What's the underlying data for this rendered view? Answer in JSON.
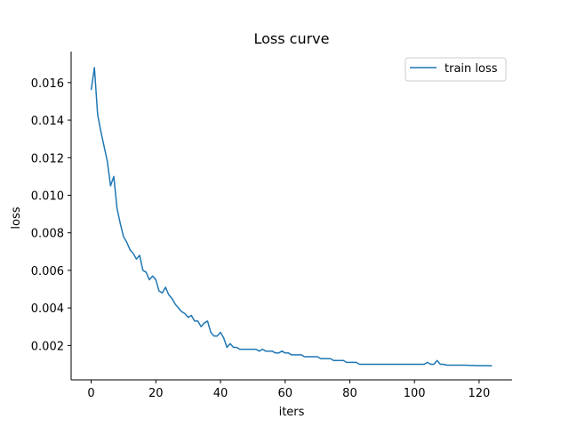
{
  "chart_data": {
    "type": "line",
    "title": "Loss curve",
    "xlabel": "iters",
    "ylabel": "loss",
    "xlim": [
      -6.2,
      130.2
    ],
    "ylim": [
      0.00017,
      0.01765
    ],
    "xticks": [
      0,
      20,
      40,
      60,
      80,
      100,
      120
    ],
    "yticks": [
      0.002,
      0.004,
      0.006,
      0.008,
      0.01,
      0.012,
      0.014,
      0.016
    ],
    "xtick_labels": [
      "0",
      "20",
      "40",
      "60",
      "80",
      "100",
      "120"
    ],
    "ytick_labels": [
      "0.002",
      "0.004",
      "0.006",
      "0.008",
      "0.010",
      "0.012",
      "0.014",
      "0.016"
    ],
    "grid": false,
    "legend": {
      "position": "top-right",
      "entries": [
        "train loss"
      ]
    },
    "series": [
      {
        "name": "train loss",
        "color": "#1f77b4",
        "x": [
          0,
          1,
          2,
          3,
          4,
          5,
          6,
          7,
          8,
          9,
          10,
          11,
          12,
          13,
          14,
          15,
          16,
          17,
          18,
          19,
          20,
          21,
          22,
          23,
          24,
          25,
          26,
          27,
          28,
          29,
          30,
          31,
          32,
          33,
          34,
          35,
          36,
          37,
          38,
          39,
          40,
          41,
          42,
          43,
          44,
          45,
          46,
          47,
          48,
          49,
          50,
          51,
          52,
          53,
          54,
          55,
          56,
          57,
          58,
          59,
          60,
          61,
          62,
          63,
          64,
          65,
          66,
          67,
          68,
          69,
          70,
          71,
          72,
          73,
          74,
          75,
          76,
          77,
          78,
          79,
          80,
          81,
          82,
          83,
          84,
          85,
          86,
          87,
          88,
          89,
          90,
          91,
          92,
          93,
          94,
          95,
          96,
          97,
          98,
          99,
          100,
          101,
          102,
          103,
          104,
          105,
          106,
          107,
          108,
          109,
          110,
          111,
          112,
          113,
          114,
          115,
          116,
          117,
          118,
          119,
          120,
          121,
          122,
          123,
          124
        ],
        "values": [
          0.0156,
          0.0168,
          0.0143,
          0.0134,
          0.0126,
          0.0118,
          0.0105,
          0.011,
          0.0093,
          0.0085,
          0.0078,
          0.0075,
          0.0071,
          0.0069,
          0.0066,
          0.0068,
          0.006,
          0.0059,
          0.0055,
          0.0057,
          0.0055,
          0.0049,
          0.0048,
          0.0051,
          0.0047,
          0.0045,
          0.0042,
          0.004,
          0.0038,
          0.0037,
          0.0035,
          0.0036,
          0.0033,
          0.0033,
          0.003,
          0.0032,
          0.0033,
          0.0027,
          0.0025,
          0.0025,
          0.0027,
          0.0024,
          0.0019,
          0.0021,
          0.0019,
          0.0019,
          0.0018,
          0.0018,
          0.0018,
          0.0018,
          0.0018,
          0.0018,
          0.0017,
          0.0018,
          0.0017,
          0.0017,
          0.0017,
          0.0016,
          0.0016,
          0.0017,
          0.0016,
          0.0016,
          0.0015,
          0.0015,
          0.0015,
          0.0015,
          0.0014,
          0.0014,
          0.0014,
          0.0014,
          0.0014,
          0.0013,
          0.0013,
          0.0013,
          0.0013,
          0.0012,
          0.0012,
          0.0012,
          0.0012,
          0.0011,
          0.0011,
          0.0011,
          0.0011,
          0.001,
          0.001,
          0.001,
          0.001,
          0.001,
          0.001,
          0.001,
          0.001,
          0.001,
          0.001,
          0.001,
          0.001,
          0.001,
          0.001,
          0.001,
          0.001,
          0.001,
          0.001,
          0.001,
          0.001,
          0.001,
          0.0011,
          0.001,
          0.001,
          0.0012,
          0.001,
          0.001,
          0.00095,
          0.00095,
          0.00095,
          0.00095,
          0.00095,
          0.00095,
          0.00095,
          0.00094,
          0.00094,
          0.00093,
          0.00093,
          0.00093,
          0.00093,
          0.00092,
          0.00092
        ]
      }
    ]
  }
}
